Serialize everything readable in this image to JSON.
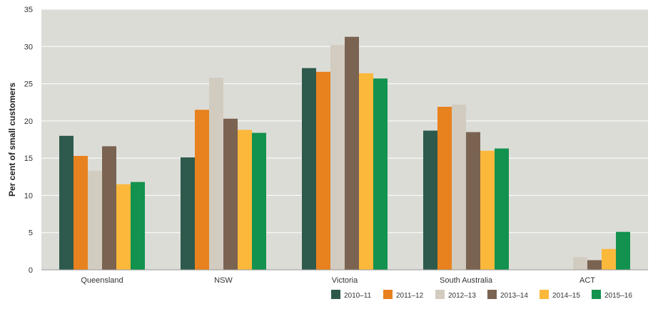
{
  "chart_data": {
    "type": "bar",
    "title": "",
    "xlabel": "",
    "ylabel": "Per cent of small customers",
    "ylim": [
      0,
      35
    ],
    "yticks": [
      0,
      5,
      10,
      15,
      20,
      25,
      30,
      35
    ],
    "grid": true,
    "legend_position": "bottom-right",
    "categories": [
      "Queensland",
      "NSW",
      "Victoria",
      "South Australia",
      "ACT"
    ],
    "series": [
      {
        "name": "2010–11",
        "color": "#2d5a4d",
        "values": [
          18.0,
          15.1,
          27.1,
          18.7,
          null
        ]
      },
      {
        "name": "2011–12",
        "color": "#e8821e",
        "values": [
          15.3,
          21.5,
          26.6,
          21.9,
          null
        ]
      },
      {
        "name": "2012–13",
        "color": "#d2cbc0",
        "values": [
          13.3,
          25.8,
          30.2,
          22.2,
          1.7
        ]
      },
      {
        "name": "2013–14",
        "color": "#7a6351",
        "values": [
          16.6,
          20.3,
          31.3,
          18.5,
          1.3
        ]
      },
      {
        "name": "2014–15",
        "color": "#fbb83b",
        "values": [
          11.5,
          18.8,
          26.4,
          16.0,
          2.8
        ]
      },
      {
        "name": "2015–16",
        "color": "#12924e",
        "values": [
          11.8,
          18.4,
          25.7,
          16.3,
          5.1
        ]
      }
    ]
  }
}
